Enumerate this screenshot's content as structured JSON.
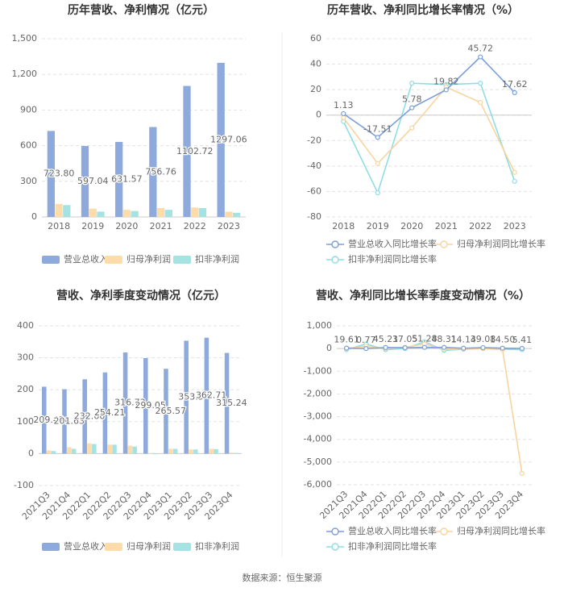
{
  "chart_data": [
    {
      "type": "bar",
      "title": "历年营收、净利情况（亿元）",
      "categories": [
        "2018",
        "2019",
        "2020",
        "2021",
        "2022",
        "2023"
      ],
      "series": [
        {
          "name": "营业总收入",
          "color": "#8eaadc",
          "values": [
            723.8,
            597.04,
            631.57,
            756.76,
            1102.72,
            1297.06
          ],
          "value_labels": [
            "723.80",
            "597.04",
            "631.57",
            "756.76",
            "1102.72",
            "1297.06"
          ]
        },
        {
          "name": "归母净利润",
          "color": "#fddcaa",
          "values": [
            110,
            70,
            60,
            75,
            80,
            45
          ]
        },
        {
          "name": "扣非净利润",
          "color": "#a5e3e3",
          "values": [
            100,
            45,
            50,
            60,
            75,
            35
          ]
        }
      ],
      "ylim": [
        0,
        1500
      ],
      "yticks": [
        0,
        300,
        600,
        900,
        {
          "value": 1200,
          "label": "1,200"
        },
        {
          "value": 1500,
          "label": "1,500"
        }
      ],
      "grid": true
    },
    {
      "type": "line",
      "title": "历年营收、净利同比增长率情况（%）",
      "categories": [
        "2018",
        "2019",
        "2020",
        "2021",
        "2022",
        "2023"
      ],
      "series": [
        {
          "name": "营业总收入同比增长率",
          "color": "#7b9fd6",
          "values": [
            1.13,
            -17.51,
            5.78,
            19.82,
            45.72,
            17.62
          ],
          "value_labels": [
            "1.13",
            "-17.51",
            "5.78",
            "19.82",
            "45.72",
            "17.62"
          ]
        },
        {
          "name": "归母净利润同比增长率",
          "color": "#f8d49e",
          "values": [
            -2,
            -38,
            -10,
            22,
            10,
            -45
          ]
        },
        {
          "name": "扣非净利润同比增长率",
          "color": "#8fdde3",
          "values": [
            -5,
            -61,
            25,
            24,
            25,
            -52
          ]
        }
      ],
      "ylim": [
        -80,
        60
      ],
      "yticks": [
        -80,
        -60,
        -40,
        -20,
        0,
        20,
        40,
        60
      ],
      "grid": true
    },
    {
      "type": "bar",
      "title": "营收、净利季度变动情况（亿元）",
      "categories": [
        "2021Q3",
        "2021Q4",
        "2022Q1",
        "2022Q2",
        "2022Q3",
        "2022Q4",
        "2023Q1",
        "2023Q2",
        "2023Q3",
        "2023Q4"
      ],
      "series": [
        {
          "name": "营业总收入",
          "color": "#8eaadc",
          "values": [
            209.42,
            201.63,
            232.66,
            254.21,
            316.73,
            299.05,
            265.57,
            353.5,
            362.71,
            315.24
          ],
          "value_labels": [
            "209.42",
            "201.63",
            "232.66",
            "254.21",
            "316.73",
            "299.05",
            "265.57",
            "353.5",
            "362.71",
            "315.24"
          ]
        },
        {
          "name": "归母净利润",
          "color": "#fddcaa",
          "values": [
            10,
            20,
            32,
            28,
            25,
            -1,
            15,
            13,
            15,
            3
          ]
        },
        {
          "name": "扣非净利润",
          "color": "#a5e3e3",
          "values": [
            8,
            15,
            30,
            28,
            22,
            -2,
            15,
            13,
            14,
            2
          ]
        }
      ],
      "ylim": [
        -100,
        400
      ],
      "yticks": [
        -100,
        0,
        100,
        200,
        300,
        400
      ],
      "grid": true
    },
    {
      "type": "line",
      "title": "营收、净利同比增长率季度变动情况（%）",
      "categories": [
        "2021Q3",
        "2021Q4",
        "2022Q1",
        "2022Q2",
        "2022Q3",
        "2022Q4",
        "2023Q1",
        "2023Q2",
        "2023Q3",
        "2023Q4"
      ],
      "series": [
        {
          "name": "营业总收入同比增长率",
          "color": "#7b9fd6",
          "values": [
            19.61,
            0.77,
            45.21,
            37.05,
            51.28,
            48.31,
            14.14,
            39.08,
            14.5,
            5.41
          ],
          "value_labels": [
            "19.61",
            "0.77",
            "45.21",
            "37.05",
            "51.28",
            "48.31",
            "14.14",
            "39.08",
            "14.50",
            "5.41"
          ]
        },
        {
          "name": "归母净利润同比增长率",
          "color": "#f8d49e",
          "values": [
            0,
            100,
            0,
            50,
            200,
            -30,
            0,
            0,
            -50,
            -5500
          ]
        },
        {
          "name": "扣非净利润同比增长率",
          "color": "#8fdde3",
          "values": [
            -50,
            200,
            -50,
            0,
            300,
            -80,
            -30,
            0,
            -30,
            -50
          ]
        }
      ],
      "ylim": [
        -6000,
        1000
      ],
      "yticks": [
        {
          "value": -6000,
          "label": "-6,000"
        },
        {
          "value": -5000,
          "label": "-5,000"
        },
        {
          "value": -4000,
          "label": "-4,000"
        },
        {
          "value": -3000,
          "label": "-3,000"
        },
        {
          "value": -2000,
          "label": "-2,000"
        },
        {
          "value": -1000,
          "label": "-1,000"
        },
        0,
        {
          "value": 1000,
          "label": "1,000"
        }
      ],
      "grid": true
    }
  ],
  "footer": "数据来源：恒生聚源"
}
